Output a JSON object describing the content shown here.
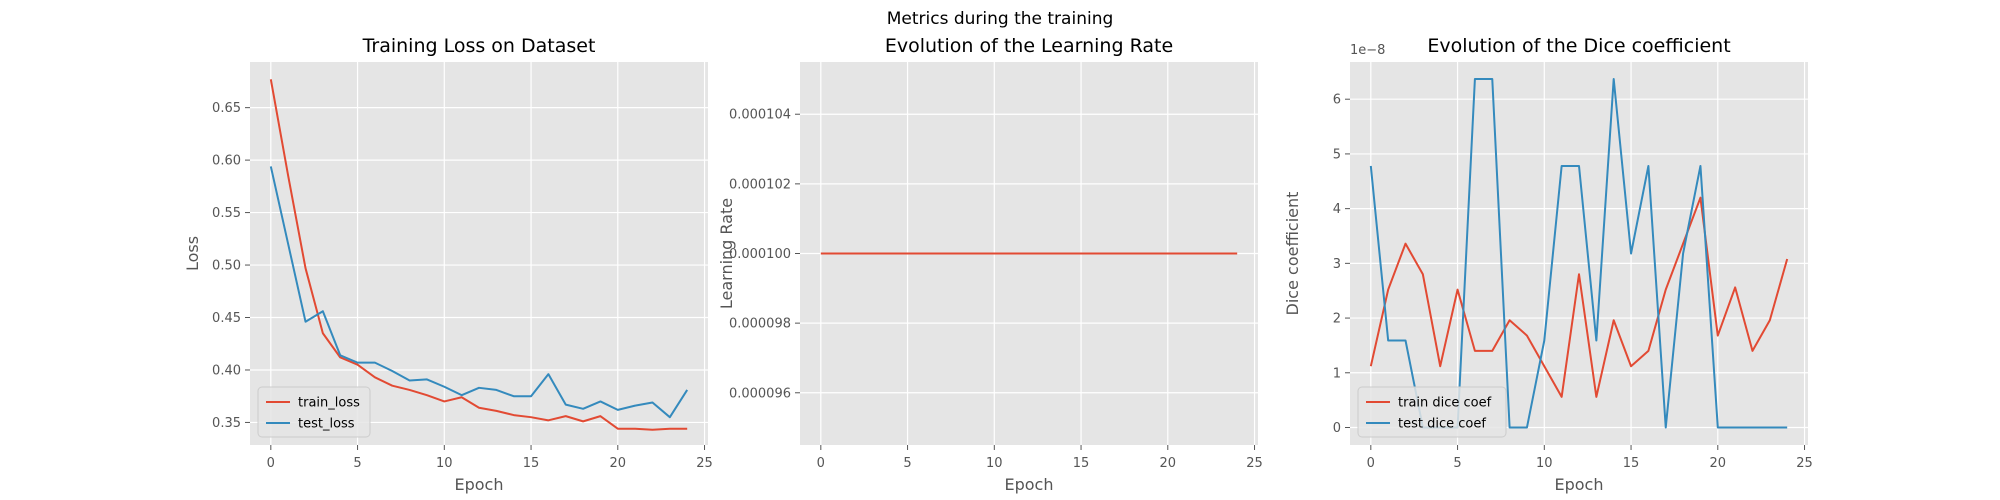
{
  "figure": {
    "suptitle": "Metrics during the training"
  },
  "chart_data": [
    {
      "type": "line",
      "title": "Training Loss on Dataset",
      "xlabel": "Epoch",
      "ylabel": "Loss",
      "xlim": [
        -1.2,
        25.2
      ],
      "ylim": [
        0.3285,
        0.6935
      ],
      "xticks": [
        0,
        5,
        10,
        15,
        20,
        25
      ],
      "yticks": [
        0.35,
        0.4,
        0.45,
        0.5,
        0.55,
        0.6,
        0.65
      ],
      "ytick_labels": [
        "0.35",
        "0.40",
        "0.45",
        "0.50",
        "0.55",
        "0.60",
        "0.65"
      ],
      "x": [
        0,
        1,
        2,
        3,
        4,
        5,
        6,
        7,
        8,
        9,
        10,
        11,
        12,
        13,
        14,
        15,
        16,
        17,
        18,
        19,
        20,
        21,
        22,
        23,
        24
      ],
      "series": [
        {
          "name": "train_loss",
          "color": "#E24A33",
          "values": [
            0.677,
            0.585,
            0.497,
            0.435,
            0.412,
            0.405,
            0.393,
            0.385,
            0.381,
            0.376,
            0.37,
            0.374,
            0.364,
            0.361,
            0.357,
            0.355,
            0.352,
            0.356,
            0.351,
            0.356,
            0.344,
            0.344,
            0.343,
            0.344,
            0.344
          ]
        },
        {
          "name": "test_loss",
          "color": "#348ABD",
          "values": [
            0.594,
            0.52,
            0.446,
            0.456,
            0.414,
            0.407,
            0.407,
            0.399,
            0.39,
            0.391,
            0.384,
            0.376,
            0.383,
            0.381,
            0.375,
            0.375,
            0.396,
            0.367,
            0.363,
            0.37,
            0.362,
            0.366,
            0.369,
            0.355,
            0.381
          ]
        }
      ],
      "legend": "lower-left",
      "grid": true
    },
    {
      "type": "line",
      "title": "Evolution of the Learning Rate",
      "xlabel": "Epoch",
      "ylabel": "Learning Rate",
      "xlim": [
        -1.2,
        25.2
      ],
      "ylim": [
        9.45e-05,
        0.0001055
      ],
      "xticks": [
        0,
        5,
        10,
        15,
        20,
        25
      ],
      "yticks": [
        9.6e-05,
        9.8e-05,
        0.0001,
        0.000102,
        0.000104
      ],
      "ytick_labels": [
        "0.000096",
        "0.000098",
        "0.000100",
        "0.000102",
        "0.000104"
      ],
      "x": [
        0,
        1,
        2,
        3,
        4,
        5,
        6,
        7,
        8,
        9,
        10,
        11,
        12,
        13,
        14,
        15,
        16,
        17,
        18,
        19,
        20,
        21,
        22,
        23,
        24
      ],
      "series": [
        {
          "color": "#E24A33",
          "values": [
            0.0001,
            0.0001,
            0.0001,
            0.0001,
            0.0001,
            0.0001,
            0.0001,
            0.0001,
            0.0001,
            0.0001,
            0.0001,
            0.0001,
            0.0001,
            0.0001,
            0.0001,
            0.0001,
            0.0001,
            0.0001,
            0.0001,
            0.0001,
            0.0001,
            0.0001,
            0.0001,
            0.0001,
            0.0001
          ]
        }
      ],
      "grid": true
    },
    {
      "type": "line",
      "title": "Evolution of the Dice coefficient",
      "xlabel": "Epoch",
      "ylabel": "Dice coefficient",
      "offset_text": "1e−8",
      "xlim": [
        -1.2,
        25.2
      ],
      "ylim": [
        -0.32,
        6.68
      ],
      "xticks": [
        0,
        5,
        10,
        15,
        20,
        25
      ],
      "yticks": [
        0,
        1,
        2,
        3,
        4,
        5,
        6
      ],
      "ytick_labels": [
        "0",
        "1",
        "2",
        "3",
        "4",
        "5",
        "6"
      ],
      "x": [
        0,
        1,
        2,
        3,
        4,
        5,
        6,
        7,
        8,
        9,
        10,
        11,
        12,
        13,
        14,
        15,
        16,
        17,
        18,
        19,
        20,
        21,
        22,
        23,
        24
      ],
      "series": [
        {
          "name": "train dice coef",
          "color": "#E24A33",
          "values": [
            1.12,
            2.52,
            3.36,
            2.8,
            1.12,
            2.52,
            1.4,
            1.4,
            1.96,
            1.68,
            1.12,
            0.56,
            2.8,
            0.56,
            1.96,
            1.12,
            1.4,
            2.52,
            3.36,
            4.2,
            1.68,
            2.56,
            1.4,
            1.96,
            3.08
          ]
        },
        {
          "name": "test dice coef",
          "color": "#348ABD",
          "values": [
            4.78,
            1.59,
            1.59,
            0.0,
            0.0,
            0.0,
            6.37,
            6.37,
            0.0,
            0.0,
            1.59,
            4.78,
            4.78,
            1.59,
            6.37,
            3.18,
            4.78,
            0.0,
            3.18,
            4.78,
            0.0,
            0.0,
            0.0,
            0.0,
            0.0
          ]
        }
      ],
      "legend": "lower-left",
      "grid": true
    }
  ]
}
